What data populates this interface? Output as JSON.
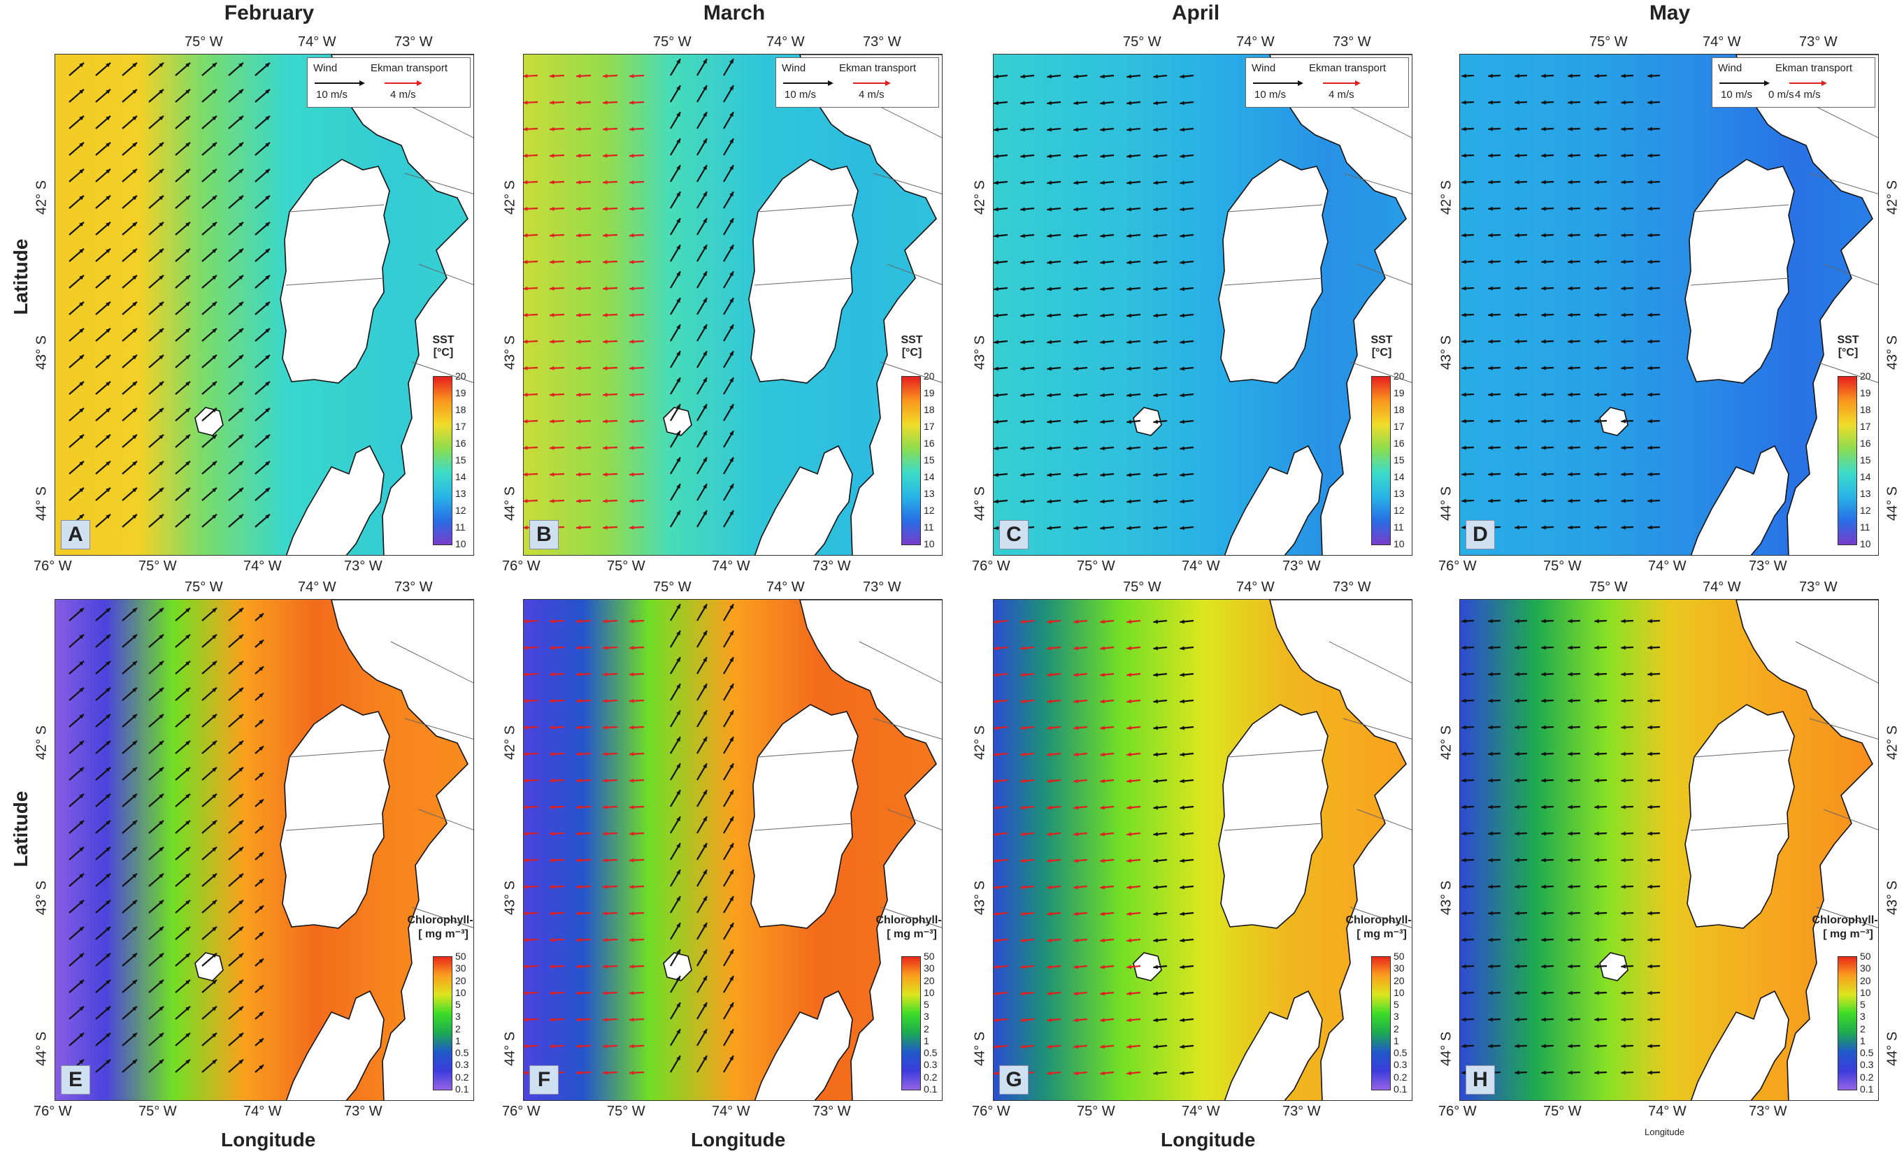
{
  "months": [
    "February",
    "March",
    "April",
    "May"
  ],
  "axis": {
    "latitude_label": "Latitude",
    "longitude_label": "Longitude",
    "top_lon_ticks": [
      "75° W",
      "74° W",
      "73° W"
    ],
    "bottom_lon_ticks": [
      "76° W",
      "75° W",
      "74° W",
      "73° W"
    ],
    "lat_ticks": [
      "42° S",
      "43° S",
      "44° S"
    ]
  },
  "legend": {
    "wind_label": "Wind",
    "wind_scale": "10 m/s",
    "ekman_label": "Ekman transport",
    "ekman_scale": "4 m/s",
    "may_extra": "0 m/s"
  },
  "sst_bar": {
    "title_line1": "SST",
    "title_line2": "[°C]",
    "ticks": [
      "20",
      "19",
      "18",
      "17",
      "16",
      "15",
      "14",
      "13",
      "12",
      "11",
      "10"
    ]
  },
  "chl_bar": {
    "title_line1": "Chlorophyll-a",
    "title_line2": "[ mg m⁻³]",
    "ticks": [
      "50",
      "30",
      "20",
      "10",
      "5",
      "3",
      "2",
      "1",
      "0.5",
      "0.3",
      "0.2",
      "0.1"
    ]
  },
  "panels_top": [
    "A",
    "B",
    "C",
    "D"
  ],
  "panels_bottom": [
    "E",
    "F",
    "G",
    "H"
  ],
  "colors": {
    "land": "#ffffff",
    "coast": "#111111",
    "wind_arrow": "#111111",
    "ekman_arrow": "#e02020"
  }
}
